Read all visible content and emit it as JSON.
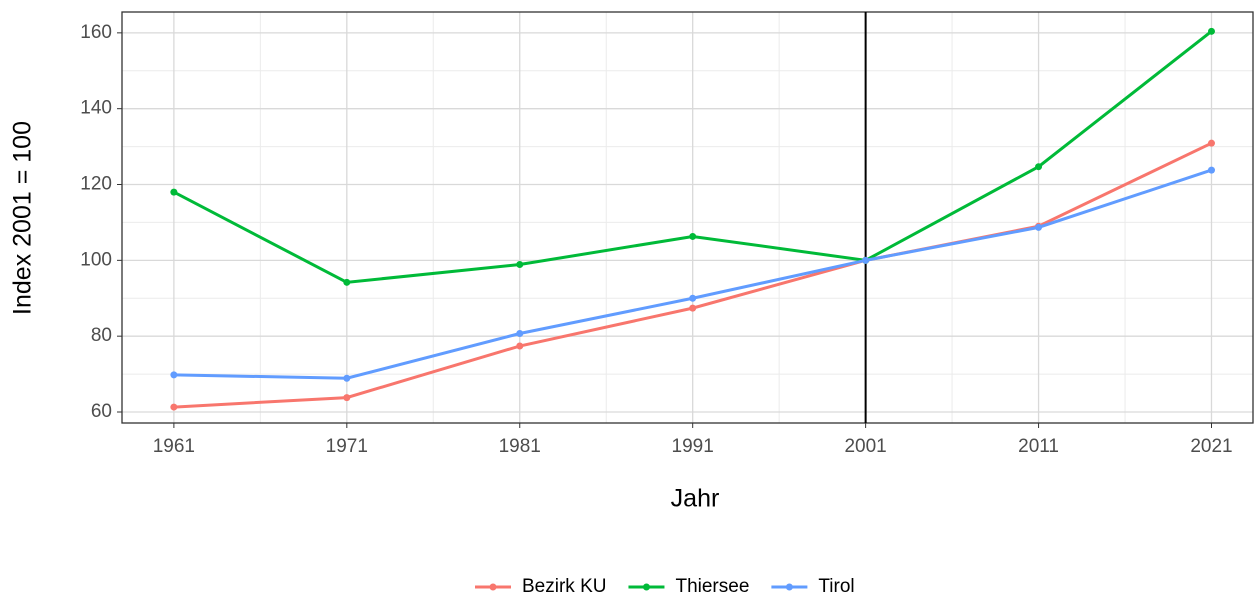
{
  "chart_data": {
    "type": "line",
    "x_label": "Jahr",
    "y_label": "Index 2001 = 100",
    "x": [
      1961,
      1971,
      1981,
      1991,
      2001,
      2011,
      2021
    ],
    "series": [
      {
        "name": "Bezirk KU",
        "color": "#F8766D",
        "values": [
          61.3,
          63.8,
          77.4,
          87.4,
          100,
          109,
          130.9
        ]
      },
      {
        "name": "Thiersee",
        "color": "#00BA38",
        "values": [
          118,
          94.2,
          98.9,
          106.3,
          100,
          124.7,
          160.4
        ]
      },
      {
        "name": "Tirol",
        "color": "#619CFF",
        "values": [
          69.8,
          68.9,
          80.7,
          90,
          100,
          108.7,
          123.8
        ]
      }
    ],
    "xlim": [
      1958,
      2023.4
    ],
    "xticks": [
      1961,
      1971,
      1981,
      1991,
      2001,
      2011,
      2021
    ],
    "xminorticks": [
      1966,
      1976,
      1986,
      1996,
      2006,
      2016
    ],
    "ylim": [
      57.1,
      165.5
    ],
    "yticks": [
      60,
      80,
      100,
      120,
      140,
      160
    ],
    "yminorticks": [
      70,
      90,
      110,
      130,
      150
    ],
    "vline": 2001,
    "grid": true,
    "legend": "bottom"
  }
}
